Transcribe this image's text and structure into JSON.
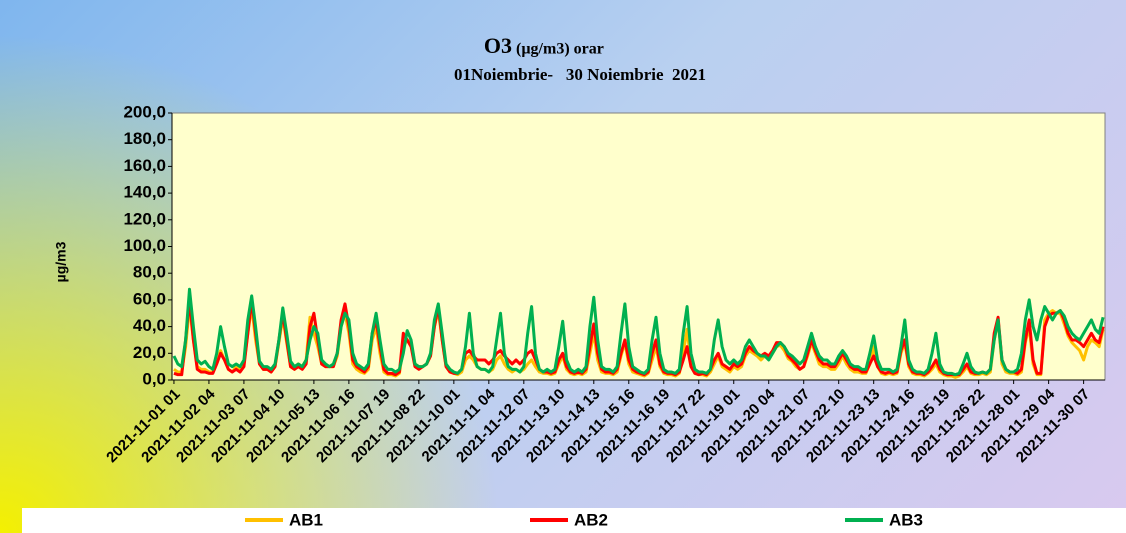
{
  "chart_data": {
    "type": "line",
    "title": "O3",
    "title_suffix": "(µg/m3) orar",
    "subtitle": "01Noiembrie-   30 Noiembrie  2021",
    "y_label": "µg/m3",
    "ylim": [
      0,
      200
    ],
    "yticks": [
      {
        "value": 0,
        "label": "0,0"
      },
      {
        "value": 20,
        "label": "20,0"
      },
      {
        "value": 40,
        "label": "40,0"
      },
      {
        "value": 60,
        "label": "60,0"
      },
      {
        "value": 80,
        "label": "80,0"
      },
      {
        "value": 100,
        "label": "100,0"
      },
      {
        "value": 120,
        "label": "120,0"
      },
      {
        "value": 140,
        "label": "140,0"
      },
      {
        "value": 160,
        "label": "160,0"
      },
      {
        "value": 180,
        "label": "180,0"
      },
      {
        "value": 200,
        "label": "200,0"
      }
    ],
    "grid": false,
    "legend": "bottom",
    "categories": [
      "2021-11-01 01",
      null,
      null,
      null,
      null,
      null,
      null,
      null,
      null,
      "2021-11-02 04",
      null,
      null,
      null,
      null,
      null,
      null,
      null,
      null,
      "2021-11-03 07",
      null,
      null,
      null,
      null,
      null,
      null,
      null,
      null,
      "2021-11-04 10",
      null,
      null,
      null,
      null,
      null,
      null,
      null,
      null,
      "2021-11-05 13",
      null,
      null,
      null,
      null,
      null,
      null,
      null,
      null,
      "2021-11-06 16",
      null,
      null,
      null,
      null,
      null,
      null,
      null,
      null,
      "2021-11-07 19",
      null,
      null,
      null,
      null,
      null,
      null,
      null,
      null,
      "2021-11-08 22",
      null,
      null,
      null,
      null,
      null,
      null,
      null,
      null,
      "2021-11-10 01",
      null,
      null,
      null,
      null,
      null,
      null,
      null,
      null,
      "2021-11-11 04",
      null,
      null,
      null,
      null,
      null,
      null,
      null,
      null,
      "2021-11-12 07",
      null,
      null,
      null,
      null,
      null,
      null,
      null,
      null,
      "2021-11-13 10",
      null,
      null,
      null,
      null,
      null,
      null,
      null,
      null,
      "2021-11-14 13",
      null,
      null,
      null,
      null,
      null,
      null,
      null,
      null,
      "2021-11-15 16",
      null,
      null,
      null,
      null,
      null,
      null,
      null,
      null,
      "2021-11-16 19",
      null,
      null,
      null,
      null,
      null,
      null,
      null,
      null,
      "2021-11-17 22",
      null,
      null,
      null,
      null,
      null,
      null,
      null,
      null,
      "2021-11-19 01",
      null,
      null,
      null,
      null,
      null,
      null,
      null,
      null,
      "2021-11-20 04",
      null,
      null,
      null,
      null,
      null,
      null,
      null,
      null,
      "2021-11-21 07",
      null,
      null,
      null,
      null,
      null,
      null,
      null,
      null,
      "2021-11-22 10",
      null,
      null,
      null,
      null,
      null,
      null,
      null,
      null,
      "2021-11-23 13",
      null,
      null,
      null,
      null,
      null,
      null,
      null,
      null,
      "2021-11-24 16",
      null,
      null,
      null,
      null,
      null,
      null,
      null,
      null,
      "2021-11-25 19",
      null,
      null,
      null,
      null,
      null,
      null,
      null,
      null,
      "2021-11-26 22",
      null,
      null,
      null,
      null,
      null,
      null,
      null,
      null,
      "2021-11-28 01",
      null,
      null,
      null,
      null,
      null,
      null,
      null,
      null,
      "2021-11-29 04",
      null,
      null,
      null,
      null,
      null,
      null,
      null,
      null,
      "2021-11-30 07",
      null,
      null,
      null,
      null,
      null
    ],
    "series": [
      {
        "name": "AB1",
        "color": "#ffc000",
        "values": [
          8,
          6,
          6,
          25,
          55,
          30,
          10,
          8,
          8,
          6,
          6,
          14,
          22,
          15,
          8,
          6,
          10,
          8,
          12,
          35,
          55,
          30,
          12,
          8,
          8,
          6,
          10,
          28,
          47,
          28,
          10,
          8,
          12,
          10,
          15,
          47,
          35,
          25,
          12,
          10,
          10,
          10,
          18,
          40,
          50,
          35,
          12,
          8,
          6,
          5,
          8,
          30,
          40,
          20,
          6,
          4,
          4,
          3,
          5,
          25,
          30,
          28,
          12,
          10,
          10,
          12,
          18,
          40,
          52,
          30,
          10,
          6,
          5,
          4,
          6,
          15,
          18,
          15,
          10,
          8,
          8,
          6,
          8,
          15,
          18,
          12,
          8,
          6,
          8,
          6,
          8,
          12,
          15,
          10,
          6,
          5,
          5,
          4,
          5,
          12,
          18,
          8,
          5,
          4,
          5,
          4,
          6,
          20,
          35,
          15,
          6,
          5,
          5,
          4,
          6,
          18,
          28,
          12,
          6,
          5,
          4,
          3,
          5,
          15,
          25,
          10,
          5,
          4,
          4,
          3,
          5,
          20,
          38,
          12,
          5,
          4,
          4,
          3,
          6,
          12,
          18,
          10,
          8,
          6,
          10,
          8,
          10,
          18,
          22,
          20,
          18,
          15,
          18,
          16,
          20,
          25,
          26,
          22,
          16,
          14,
          10,
          8,
          10,
          18,
          28,
          20,
          12,
          10,
          10,
          8,
          8,
          12,
          18,
          12,
          8,
          6,
          6,
          5,
          5,
          12,
          25,
          10,
          5,
          4,
          5,
          4,
          5,
          20,
          28,
          10,
          5,
          4,
          4,
          3,
          5,
          8,
          12,
          6,
          4,
          3,
          3,
          2,
          3,
          6,
          10,
          5,
          4,
          4,
          5,
          4,
          6,
          30,
          45,
          12,
          6,
          5,
          5,
          4,
          6,
          28,
          40,
          12,
          4,
          4,
          45,
          50,
          52,
          50,
          50,
          42,
          33,
          28,
          25,
          22,
          15,
          25,
          30,
          28,
          25,
          38
        ]
      },
      {
        "name": "AB2",
        "color": "#ff0000",
        "values": [
          5,
          4,
          4,
          30,
          60,
          30,
          8,
          6,
          6,
          5,
          5,
          12,
          20,
          15,
          8,
          6,
          8,
          6,
          10,
          35,
          60,
          35,
          12,
          8,
          8,
          6,
          10,
          30,
          50,
          30,
          10,
          8,
          10,
          8,
          12,
          40,
          50,
          30,
          12,
          10,
          10,
          10,
          20,
          45,
          57,
          40,
          15,
          10,
          8,
          6,
          10,
          35,
          45,
          25,
          8,
          5,
          5,
          4,
          6,
          35,
          30,
          25,
          10,
          8,
          10,
          12,
          18,
          40,
          55,
          30,
          10,
          6,
          5,
          5,
          8,
          20,
          22,
          18,
          15,
          15,
          15,
          12,
          15,
          20,
          22,
          18,
          15,
          12,
          15,
          12,
          15,
          20,
          22,
          15,
          8,
          6,
          6,
          5,
          6,
          15,
          20,
          10,
          6,
          5,
          6,
          5,
          8,
          25,
          42,
          20,
          8,
          6,
          6,
          5,
          8,
          20,
          30,
          15,
          8,
          6,
          5,
          4,
          6,
          20,
          30,
          12,
          6,
          5,
          5,
          4,
          6,
          15,
          25,
          10,
          5,
          4,
          5,
          4,
          8,
          15,
          20,
          12,
          10,
          8,
          12,
          10,
          12,
          20,
          25,
          22,
          20,
          18,
          20,
          18,
          22,
          28,
          28,
          25,
          18,
          15,
          12,
          8,
          10,
          20,
          30,
          22,
          15,
          12,
          12,
          10,
          10,
          15,
          20,
          15,
          10,
          8,
          8,
          6,
          6,
          12,
          18,
          10,
          6,
          5,
          6,
          5,
          6,
          22,
          30,
          12,
          6,
          5,
          5,
          4,
          6,
          10,
          15,
          8,
          5,
          4,
          4,
          4,
          4,
          8,
          12,
          6,
          5,
          5,
          6,
          5,
          8,
          35,
          47,
          15,
          8,
          6,
          6,
          5,
          8,
          30,
          45,
          15,
          5,
          5,
          40,
          48,
          50,
          50,
          52,
          45,
          35,
          30,
          30,
          28,
          25,
          30,
          35,
          30,
          28,
          40
        ]
      },
      {
        "name": "AB3",
        "color": "#00b050",
        "values": [
          18,
          12,
          10,
          30,
          68,
          40,
          15,
          12,
          14,
          10,
          8,
          20,
          40,
          25,
          12,
          10,
          12,
          10,
          15,
          45,
          63,
          40,
          14,
          10,
          10,
          8,
          12,
          30,
          54,
          35,
          14,
          10,
          12,
          10,
          15,
          30,
          40,
          35,
          15,
          12,
          10,
          12,
          20,
          40,
          50,
          45,
          20,
          12,
          10,
          8,
          12,
          35,
          50,
          30,
          12,
          8,
          8,
          6,
          8,
          20,
          37,
          30,
          12,
          10,
          10,
          12,
          20,
          45,
          57,
          35,
          12,
          8,
          6,
          5,
          8,
          25,
          50,
          20,
          10,
          8,
          8,
          6,
          10,
          30,
          50,
          20,
          10,
          8,
          8,
          6,
          10,
          35,
          55,
          20,
          8,
          6,
          8,
          6,
          8,
          25,
          44,
          15,
          8,
          6,
          8,
          6,
          10,
          40,
          62,
          30,
          10,
          8,
          8,
          6,
          10,
          35,
          57,
          25,
          10,
          8,
          6,
          5,
          8,
          30,
          47,
          20,
          8,
          6,
          6,
          5,
          8,
          35,
          55,
          20,
          8,
          6,
          6,
          5,
          8,
          30,
          45,
          25,
          15,
          12,
          15,
          12,
          15,
          25,
          30,
          25,
          20,
          18,
          18,
          15,
          20,
          25,
          28,
          25,
          20,
          18,
          15,
          12,
          15,
          25,
          35,
          25,
          18,
          15,
          15,
          12,
          12,
          18,
          22,
          18,
          12,
          10,
          10,
          8,
          8,
          20,
          33,
          15,
          8,
          8,
          8,
          6,
          8,
          25,
          45,
          15,
          8,
          6,
          6,
          5,
          8,
          20,
          35,
          12,
          6,
          5,
          5,
          4,
          5,
          12,
          20,
          10,
          6,
          5,
          6,
          5,
          8,
          30,
          45,
          15,
          8,
          6,
          6,
          8,
          20,
          45,
          60,
          40,
          30,
          45,
          55,
          50,
          45,
          50,
          52,
          48,
          40,
          35,
          32,
          30,
          35,
          40,
          45,
          38,
          35,
          47
        ]
      }
    ]
  }
}
